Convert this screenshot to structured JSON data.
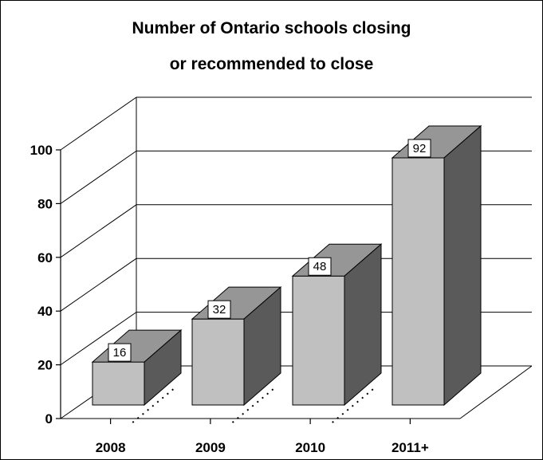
{
  "chart_data": {
    "type": "bar",
    "title_lines": [
      "Number of Ontario schools closing",
      "or recommended to close"
    ],
    "categories": [
      "2008",
      "2009",
      "2010",
      "2011+"
    ],
    "values": [
      16,
      32,
      48,
      92
    ],
    "data_labels": [
      "16",
      "32",
      "48",
      "92"
    ],
    "y_ticks": [
      "0",
      "20",
      "40",
      "60",
      "80",
      "100"
    ],
    "ylim": [
      0,
      100
    ],
    "xlabel": "",
    "ylabel": "",
    "grid": true,
    "legend": "none",
    "style": "3d",
    "colors": {
      "bar_front": "#c0c0c0",
      "bar_top": "#969696",
      "bar_side": "#5a5a5a",
      "grid": "#000000"
    }
  }
}
